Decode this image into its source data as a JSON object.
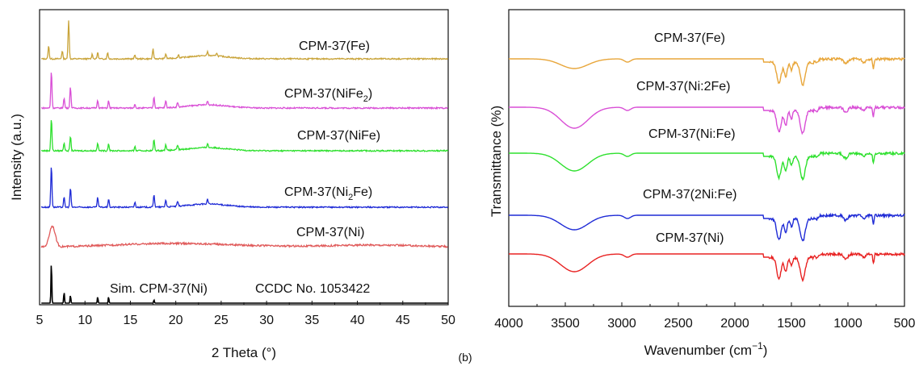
{
  "chart_data": [
    {
      "type": "line",
      "xlabel": "2 Theta (°)",
      "ylabel": "Intensity (a.u.)",
      "xlim": [
        5,
        50
      ],
      "xticks": [
        "5",
        "10",
        "15",
        "20",
        "25",
        "30",
        "35",
        "40",
        "45",
        "50"
      ],
      "grid": false,
      "legend": "labels placed next to each stacked curve",
      "series": [
        {
          "name": "CPM-37(Fe)",
          "color": "#c9a43a",
          "peaks": [
            6.0,
            7.5,
            8.2,
            10.8,
            11.4,
            12.5,
            15.5,
            17.5,
            18.9,
            20.3,
            23.5,
            24.5
          ]
        },
        {
          "name": "CPM-37(NiFe2)",
          "label_main": "CPM-37(NiFe",
          "label_sub": "2",
          "label_tail": ")",
          "color": "#d94fd6",
          "peaks": [
            6.3,
            7.7,
            8.4,
            11.4,
            12.6,
            15.5,
            17.6,
            18.9,
            20.2,
            23.5
          ]
        },
        {
          "name": "CPM-37(NiFe)",
          "color": "#2ee02e",
          "peaks": [
            6.3,
            7.7,
            8.4,
            11.4,
            12.6,
            15.5,
            17.6,
            18.9,
            20.2,
            23.5
          ]
        },
        {
          "name": "CPM-37(Ni2Fe)",
          "label_main": "CPM-37(Ni",
          "label_sub": "2",
          "label_tail": "Fe)",
          "color": "#1f2bd6",
          "peaks": [
            6.3,
            7.7,
            8.4,
            11.4,
            12.6,
            15.5,
            17.6,
            18.9,
            20.2,
            23.5
          ]
        },
        {
          "name": "CPM-37(Ni)",
          "color": "#e05a5a",
          "peaks": [
            6.4
          ]
        },
        {
          "name": "Sim. CPM-37(Ni)",
          "color": "#000000",
          "peaks": [
            6.3,
            7.7,
            8.4,
            11.4,
            12.6,
            17.6
          ]
        }
      ],
      "annotations": [
        "CCDC No. 1053422"
      ]
    },
    {
      "type": "line",
      "xlabel": "Wavenumber (cm",
      "xlabel_sup": "−1",
      "xlabel_tail": ")",
      "ylabel": "Transmittance (%)",
      "xlim": [
        4000,
        500
      ],
      "xticks": [
        "4000",
        "3500",
        "3000",
        "2500",
        "2000",
        "1500",
        "1000",
        "500"
      ],
      "grid": false,
      "legend": "labels placed next to each stacked curve",
      "series": [
        {
          "name": "CPM-37(Fe)",
          "color": "#e8a63a"
        },
        {
          "name": "CPM-37(Ni:2Fe)",
          "color": "#d94fd6"
        },
        {
          "name": "CPM-37(Ni:Fe)",
          "color": "#2ee02e"
        },
        {
          "name": "CPM-37(2Ni:Fe)",
          "color": "#1f2bd6"
        },
        {
          "name": "CPM-37(Ni)",
          "color": "#e82222"
        }
      ]
    }
  ],
  "panel_label": "(b)"
}
